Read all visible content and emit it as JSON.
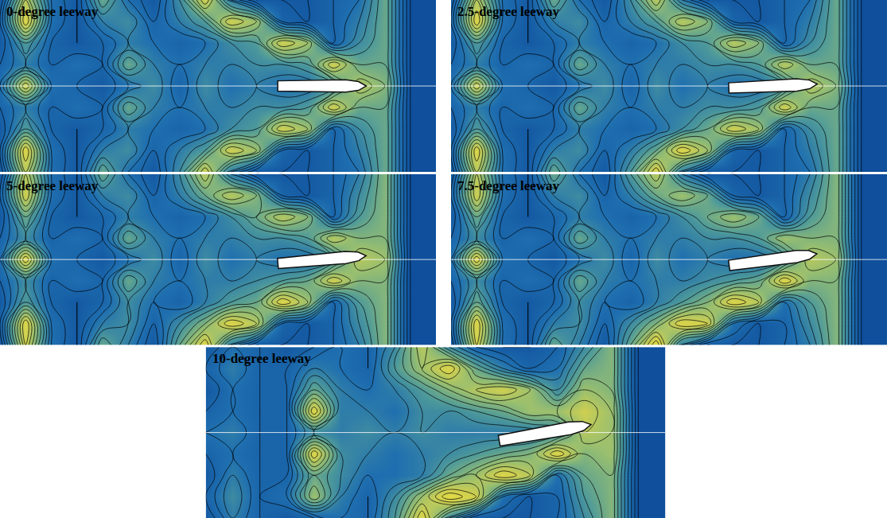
{
  "chart_data": [
    {
      "type": "contour",
      "title": "0-degree leeway",
      "leeway": 0,
      "zlim": [
        0,
        1
      ],
      "tick_labels": false,
      "z": [
        [
          0.3,
          0.75,
          0.4,
          0.3,
          0.6,
          0.4,
          0.3,
          0.5,
          0.8,
          0.45,
          0.3,
          0.3,
          0.3,
          0.35,
          0.4,
          0.6,
          0.25,
          0.25
        ],
        [
          0.35,
          0.85,
          0.4,
          0.3,
          0.45,
          0.5,
          0.35,
          0.45,
          0.55,
          0.8,
          0.7,
          0.35,
          0.3,
          0.35,
          0.45,
          0.6,
          0.25,
          0.25
        ],
        [
          0.3,
          0.55,
          0.35,
          0.3,
          0.35,
          0.45,
          0.4,
          0.35,
          0.4,
          0.5,
          0.55,
          0.8,
          0.7,
          0.35,
          0.5,
          0.6,
          0.25,
          0.25
        ],
        [
          0.35,
          0.45,
          0.35,
          0.4,
          0.35,
          0.6,
          0.45,
          0.4,
          0.45,
          0.45,
          0.5,
          0.5,
          0.55,
          0.8,
          0.6,
          0.6,
          0.25,
          0.25
        ],
        [
          0.4,
          0.8,
          0.4,
          0.35,
          0.3,
          0.4,
          0.5,
          0.35,
          0.5,
          0.4,
          0.45,
          0.4,
          0.4,
          0.5,
          0.75,
          0.65,
          0.25,
          0.25
        ],
        [
          0.35,
          0.45,
          0.35,
          0.4,
          0.35,
          0.6,
          0.45,
          0.4,
          0.45,
          0.45,
          0.5,
          0.5,
          0.55,
          0.8,
          0.6,
          0.6,
          0.25,
          0.25
        ],
        [
          0.3,
          0.55,
          0.35,
          0.3,
          0.35,
          0.45,
          0.4,
          0.35,
          0.4,
          0.5,
          0.55,
          0.8,
          0.7,
          0.35,
          0.5,
          0.6,
          0.25,
          0.25
        ],
        [
          0.35,
          0.85,
          0.4,
          0.3,
          0.45,
          0.5,
          0.35,
          0.45,
          0.55,
          0.8,
          0.7,
          0.35,
          0.3,
          0.35,
          0.45,
          0.6,
          0.25,
          0.25
        ],
        [
          0.3,
          0.75,
          0.4,
          0.3,
          0.6,
          0.4,
          0.3,
          0.5,
          0.8,
          0.45,
          0.3,
          0.3,
          0.3,
          0.35,
          0.4,
          0.6,
          0.25,
          0.25
        ]
      ]
    },
    {
      "type": "contour",
      "title": "2.5-degree leeway",
      "leeway": 2.5,
      "zlim": [
        0,
        1
      ],
      "tick_labels": false,
      "z": [
        [
          0.3,
          0.75,
          0.4,
          0.3,
          0.6,
          0.4,
          0.3,
          0.55,
          0.85,
          0.45,
          0.3,
          0.3,
          0.3,
          0.35,
          0.4,
          0.6,
          0.25,
          0.25
        ],
        [
          0.35,
          0.85,
          0.4,
          0.3,
          0.45,
          0.5,
          0.35,
          0.45,
          0.6,
          0.85,
          0.7,
          0.35,
          0.3,
          0.35,
          0.45,
          0.6,
          0.25,
          0.25
        ],
        [
          0.3,
          0.55,
          0.35,
          0.3,
          0.35,
          0.45,
          0.4,
          0.35,
          0.4,
          0.5,
          0.6,
          0.8,
          0.7,
          0.35,
          0.5,
          0.6,
          0.25,
          0.25
        ],
        [
          0.35,
          0.45,
          0.35,
          0.4,
          0.35,
          0.6,
          0.45,
          0.4,
          0.45,
          0.45,
          0.5,
          0.5,
          0.55,
          0.8,
          0.6,
          0.6,
          0.25,
          0.25
        ],
        [
          0.4,
          0.8,
          0.4,
          0.35,
          0.3,
          0.4,
          0.5,
          0.35,
          0.5,
          0.4,
          0.45,
          0.4,
          0.4,
          0.5,
          0.75,
          0.65,
          0.25,
          0.25
        ],
        [
          0.35,
          0.45,
          0.35,
          0.4,
          0.35,
          0.6,
          0.45,
          0.4,
          0.45,
          0.45,
          0.5,
          0.5,
          0.55,
          0.75,
          0.6,
          0.6,
          0.25,
          0.25
        ],
        [
          0.3,
          0.55,
          0.35,
          0.3,
          0.35,
          0.45,
          0.4,
          0.35,
          0.4,
          0.5,
          0.55,
          0.75,
          0.65,
          0.35,
          0.5,
          0.6,
          0.25,
          0.25
        ],
        [
          0.35,
          0.85,
          0.4,
          0.3,
          0.45,
          0.5,
          0.35,
          0.45,
          0.55,
          0.75,
          0.65,
          0.35,
          0.3,
          0.35,
          0.45,
          0.6,
          0.25,
          0.25
        ],
        [
          0.3,
          0.75,
          0.4,
          0.3,
          0.6,
          0.4,
          0.3,
          0.5,
          0.75,
          0.45,
          0.3,
          0.3,
          0.3,
          0.35,
          0.4,
          0.6,
          0.25,
          0.25
        ]
      ]
    },
    {
      "type": "contour",
      "title": "5-degree leeway",
      "leeway": 5,
      "zlim": [
        0,
        1
      ],
      "tick_labels": false,
      "z": [
        [
          0.3,
          0.8,
          0.4,
          0.3,
          0.6,
          0.45,
          0.3,
          0.6,
          0.85,
          0.45,
          0.3,
          0.3,
          0.3,
          0.35,
          0.45,
          0.65,
          0.25,
          0.25
        ],
        [
          0.35,
          0.85,
          0.4,
          0.3,
          0.45,
          0.5,
          0.35,
          0.5,
          0.65,
          0.85,
          0.75,
          0.35,
          0.3,
          0.35,
          0.5,
          0.65,
          0.25,
          0.25
        ],
        [
          0.3,
          0.55,
          0.35,
          0.3,
          0.35,
          0.5,
          0.4,
          0.35,
          0.45,
          0.55,
          0.6,
          0.85,
          0.7,
          0.35,
          0.55,
          0.65,
          0.25,
          0.25
        ],
        [
          0.35,
          0.5,
          0.35,
          0.4,
          0.35,
          0.6,
          0.45,
          0.4,
          0.45,
          0.45,
          0.5,
          0.55,
          0.6,
          0.8,
          0.65,
          0.65,
          0.25,
          0.25
        ],
        [
          0.4,
          0.85,
          0.4,
          0.35,
          0.3,
          0.4,
          0.5,
          0.35,
          0.5,
          0.4,
          0.45,
          0.4,
          0.4,
          0.5,
          0.75,
          0.7,
          0.25,
          0.25
        ],
        [
          0.35,
          0.5,
          0.35,
          0.4,
          0.35,
          0.6,
          0.45,
          0.4,
          0.45,
          0.45,
          0.5,
          0.5,
          0.55,
          0.75,
          0.65,
          0.65,
          0.25,
          0.25
        ],
        [
          0.3,
          0.6,
          0.35,
          0.3,
          0.35,
          0.45,
          0.4,
          0.35,
          0.4,
          0.5,
          0.6,
          0.75,
          0.65,
          0.35,
          0.55,
          0.65,
          0.25,
          0.25
        ],
        [
          0.35,
          0.8,
          0.4,
          0.3,
          0.45,
          0.5,
          0.35,
          0.45,
          0.6,
          0.75,
          0.65,
          0.35,
          0.3,
          0.35,
          0.5,
          0.65,
          0.25,
          0.25
        ],
        [
          0.3,
          0.75,
          0.4,
          0.3,
          0.6,
          0.4,
          0.3,
          0.5,
          0.75,
          0.45,
          0.3,
          0.3,
          0.3,
          0.35,
          0.45,
          0.65,
          0.25,
          0.25
        ]
      ]
    },
    {
      "type": "contour",
      "title": "7.5-degree leeway",
      "leeway": 7.5,
      "zlim": [
        0,
        1
      ],
      "tick_labels": false,
      "z": [
        [
          0.3,
          0.8,
          0.4,
          0.3,
          0.6,
          0.45,
          0.3,
          0.6,
          0.9,
          0.45,
          0.3,
          0.3,
          0.3,
          0.35,
          0.45,
          0.65,
          0.25,
          0.25
        ],
        [
          0.35,
          0.85,
          0.4,
          0.3,
          0.45,
          0.5,
          0.35,
          0.5,
          0.65,
          0.85,
          0.8,
          0.4,
          0.3,
          0.35,
          0.5,
          0.65,
          0.25,
          0.25
        ],
        [
          0.3,
          0.6,
          0.35,
          0.3,
          0.35,
          0.5,
          0.4,
          0.35,
          0.45,
          0.55,
          0.65,
          0.85,
          0.75,
          0.4,
          0.55,
          0.65,
          0.25,
          0.25
        ],
        [
          0.35,
          0.5,
          0.35,
          0.4,
          0.35,
          0.6,
          0.45,
          0.4,
          0.45,
          0.45,
          0.5,
          0.55,
          0.6,
          0.85,
          0.65,
          0.65,
          0.25,
          0.25
        ],
        [
          0.4,
          0.85,
          0.4,
          0.35,
          0.3,
          0.4,
          0.5,
          0.35,
          0.5,
          0.4,
          0.45,
          0.4,
          0.4,
          0.5,
          0.75,
          0.7,
          0.25,
          0.25
        ],
        [
          0.35,
          0.5,
          0.35,
          0.4,
          0.35,
          0.6,
          0.45,
          0.4,
          0.45,
          0.45,
          0.5,
          0.5,
          0.55,
          0.7,
          0.65,
          0.65,
          0.25,
          0.25
        ],
        [
          0.3,
          0.6,
          0.35,
          0.3,
          0.35,
          0.45,
          0.4,
          0.35,
          0.4,
          0.5,
          0.6,
          0.7,
          0.6,
          0.35,
          0.55,
          0.65,
          0.25,
          0.25
        ],
        [
          0.35,
          0.8,
          0.4,
          0.3,
          0.45,
          0.5,
          0.35,
          0.45,
          0.6,
          0.7,
          0.6,
          0.35,
          0.3,
          0.35,
          0.5,
          0.65,
          0.25,
          0.25
        ],
        [
          0.3,
          0.75,
          0.4,
          0.3,
          0.6,
          0.4,
          0.3,
          0.55,
          0.75,
          0.45,
          0.3,
          0.3,
          0.3,
          0.35,
          0.45,
          0.65,
          0.25,
          0.25
        ]
      ]
    },
    {
      "type": "contour",
      "title": "10-degree leeway",
      "leeway": 10,
      "zlim": [
        0,
        1
      ],
      "tick_labels": false,
      "z": [
        [
          0.3,
          0.45,
          0.35,
          0.3,
          0.35,
          0.4,
          0.35,
          0.55,
          0.85,
          0.5,
          0.3,
          0.3,
          0.3,
          0.35,
          0.5,
          0.65,
          0.25,
          0.25
        ],
        [
          0.35,
          0.5,
          0.35,
          0.4,
          0.7,
          0.45,
          0.35,
          0.5,
          0.7,
          0.9,
          0.8,
          0.4,
          0.3,
          0.35,
          0.55,
          0.65,
          0.25,
          0.25
        ],
        [
          0.3,
          0.45,
          0.35,
          0.35,
          0.6,
          0.5,
          0.4,
          0.4,
          0.45,
          0.6,
          0.7,
          0.85,
          0.75,
          0.4,
          0.6,
          0.65,
          0.25,
          0.25
        ],
        [
          0.35,
          0.4,
          0.35,
          0.35,
          0.85,
          0.5,
          0.45,
          0.4,
          0.45,
          0.5,
          0.55,
          0.6,
          0.65,
          0.85,
          0.65,
          0.7,
          0.25,
          0.25
        ],
        [
          0.4,
          0.45,
          0.35,
          0.35,
          0.5,
          0.45,
          0.5,
          0.45,
          0.5,
          0.45,
          0.45,
          0.45,
          0.45,
          0.5,
          0.75,
          0.7,
          0.25,
          0.25
        ],
        [
          0.35,
          0.4,
          0.35,
          0.35,
          0.85,
          0.45,
          0.45,
          0.4,
          0.5,
          0.5,
          0.55,
          0.6,
          0.7,
          0.7,
          0.8,
          0.7,
          0.25,
          0.25
        ],
        [
          0.3,
          0.4,
          0.35,
          0.35,
          0.6,
          0.45,
          0.4,
          0.45,
          0.55,
          0.65,
          0.75,
          0.8,
          0.7,
          0.5,
          0.7,
          0.65,
          0.25,
          0.25
        ],
        [
          0.35,
          0.45,
          0.35,
          0.35,
          0.45,
          0.4,
          0.35,
          0.55,
          0.7,
          0.85,
          0.6,
          0.45,
          0.35,
          0.4,
          0.6,
          0.65,
          0.25,
          0.25
        ],
        [
          0.3,
          0.4,
          0.35,
          0.3,
          0.35,
          0.4,
          0.35,
          0.5,
          0.75,
          0.5,
          0.35,
          0.3,
          0.3,
          0.35,
          0.5,
          0.65,
          0.25,
          0.25
        ]
      ]
    }
  ]
}
